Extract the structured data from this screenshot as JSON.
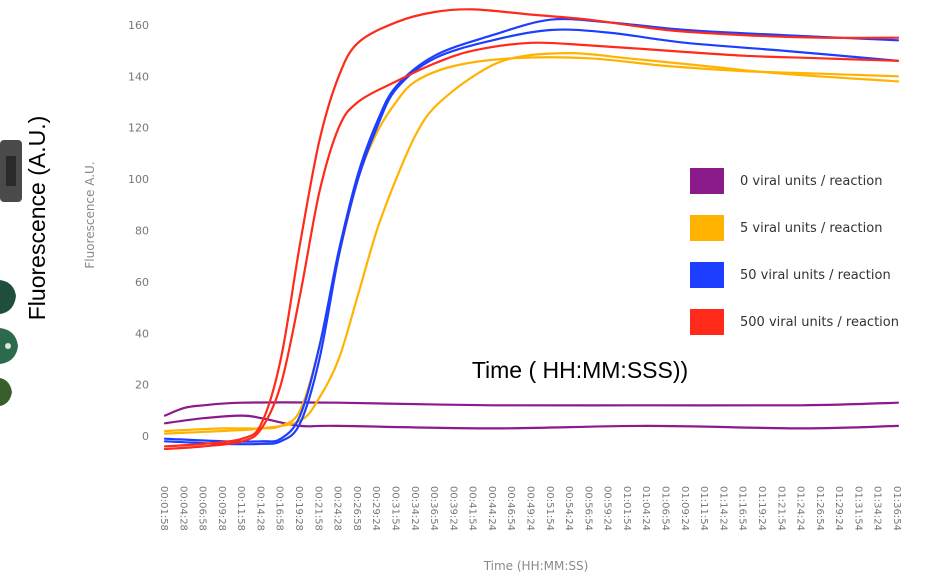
{
  "chart_data": {
    "type": "line",
    "title": "",
    "ylabel": "Fluorescence A.U.",
    "ylabel_overlay": "Fluorescence (A.U.)",
    "xlabel": "Time (HH:MM:SS)",
    "xlabel_overlay": "Time ( HH:MM:SSS))",
    "ylim": [
      -5,
      165
    ],
    "y_ticks": [
      0,
      20,
      40,
      60,
      80,
      100,
      120,
      140,
      160
    ],
    "xlim": [
      "00:01:58",
      "01:36:54"
    ],
    "x_ticks": [
      "00:01:58",
      "00:04:28",
      "00:06:58",
      "00:09:28",
      "00:11:58",
      "00:14:28",
      "00:16:58",
      "00:19:28",
      "00:21:58",
      "00:24:28",
      "00:26:58",
      "00:29:24",
      "00:31:54",
      "00:34:24",
      "00:36:54",
      "00:39:24",
      "00:41:54",
      "00:44:24",
      "00:46:54",
      "00:49:24",
      "00:51:54",
      "00:54:24",
      "00:56:54",
      "00:59:24",
      "01:01:54",
      "01:04:24",
      "01:06:54",
      "01:09:24",
      "01:11:54",
      "01:14:24",
      "01:16:54",
      "01:19:24",
      "01:21:54",
      "01:24:24",
      "01:26:54",
      "01:29:24",
      "01:31:54",
      "01:34:24",
      "01:36:54"
    ],
    "grid": false,
    "legend_position": "right",
    "series": [
      {
        "name": "0 viral units / reaction",
        "color": "#8B1A8B",
        "group": 0,
        "points": [
          [
            "00:01:58",
            8
          ],
          [
            "00:04:28",
            11
          ],
          [
            "00:06:58",
            12
          ],
          [
            "00:11:58",
            13
          ],
          [
            "00:24:28",
            13
          ],
          [
            "00:44:24",
            12
          ],
          [
            "01:04:24",
            12
          ],
          [
            "01:24:24",
            12
          ],
          [
            "01:36:54",
            13
          ]
        ]
      },
      {
        "name": "0 viral units / reaction",
        "color": "#8B1A8B",
        "group": 0,
        "points": [
          [
            "00:01:58",
            5
          ],
          [
            "00:06:58",
            7
          ],
          [
            "00:11:58",
            8
          ],
          [
            "00:14:28",
            7
          ],
          [
            "00:19:28",
            4
          ],
          [
            "00:24:28",
            4
          ],
          [
            "00:44:24",
            3
          ],
          [
            "01:04:24",
            4
          ],
          [
            "01:24:24",
            3
          ],
          [
            "01:36:54",
            4
          ]
        ]
      },
      {
        "name": "5 viral units / reaction",
        "color": "#FFB300",
        "group": 1,
        "points": [
          [
            "00:01:58",
            2
          ],
          [
            "00:09:28",
            3
          ],
          [
            "00:14:28",
            3
          ],
          [
            "00:16:58",
            4
          ],
          [
            "00:19:28",
            10
          ],
          [
            "00:21:58",
            35
          ],
          [
            "00:24:28",
            70
          ],
          [
            "00:26:58",
            100
          ],
          [
            "00:29:24",
            118
          ],
          [
            "00:31:54",
            130
          ],
          [
            "00:34:24",
            138
          ],
          [
            "00:39:24",
            144
          ],
          [
            "00:46:54",
            147
          ],
          [
            "00:56:54",
            147
          ],
          [
            "01:06:54",
            144
          ],
          [
            "01:16:54",
            142
          ],
          [
            "01:26:54",
            141
          ],
          [
            "01:36:54",
            140
          ]
        ]
      },
      {
        "name": "5 viral units / reaction",
        "color": "#FFB300",
        "group": 1,
        "points": [
          [
            "00:01:58",
            1
          ],
          [
            "00:09:28",
            2
          ],
          [
            "00:14:28",
            3
          ],
          [
            "00:19:28",
            6
          ],
          [
            "00:21:58",
            15
          ],
          [
            "00:24:28",
            30
          ],
          [
            "00:26:58",
            55
          ],
          [
            "00:29:24",
            80
          ],
          [
            "00:31:54",
            100
          ],
          [
            "00:34:24",
            117
          ],
          [
            "00:36:54",
            128
          ],
          [
            "00:41:54",
            140
          ],
          [
            "00:46:54",
            147
          ],
          [
            "00:54:24",
            149
          ],
          [
            "01:01:54",
            147
          ],
          [
            "01:11:54",
            144
          ],
          [
            "01:21:54",
            141
          ],
          [
            "01:36:54",
            138
          ]
        ]
      },
      {
        "name": "50 viral units / reaction",
        "color": "#1E3EFF",
        "group": 2,
        "points": [
          [
            "00:01:58",
            -2
          ],
          [
            "00:09:28",
            -3
          ],
          [
            "00:14:28",
            -3
          ],
          [
            "00:16:58",
            -2
          ],
          [
            "00:19:28",
            5
          ],
          [
            "00:21:58",
            30
          ],
          [
            "00:24:28",
            70
          ],
          [
            "00:26:58",
            100
          ],
          [
            "00:29:24",
            120
          ],
          [
            "00:31:54",
            135
          ],
          [
            "00:36:54",
            147
          ],
          [
            "00:44:24",
            154
          ],
          [
            "00:51:54",
            158
          ],
          [
            "00:59:24",
            157
          ],
          [
            "01:09:24",
            153
          ],
          [
            "01:21:54",
            150
          ],
          [
            "01:36:54",
            146
          ]
        ]
      },
      {
        "name": "50 viral units / reaction",
        "color": "#1E3EFF",
        "group": 2,
        "points": [
          [
            "00:01:58",
            -1
          ],
          [
            "00:09:28",
            -2
          ],
          [
            "00:14:28",
            -2
          ],
          [
            "00:16:58",
            -1
          ],
          [
            "00:19:28",
            8
          ],
          [
            "00:21:58",
            35
          ],
          [
            "00:24:28",
            72
          ],
          [
            "00:26:58",
            102
          ],
          [
            "00:29:24",
            122
          ],
          [
            "00:31:54",
            136
          ],
          [
            "00:36:54",
            148
          ],
          [
            "00:44:24",
            156
          ],
          [
            "00:51:54",
            162
          ],
          [
            "00:59:24",
            161
          ],
          [
            "01:09:24",
            158
          ],
          [
            "01:21:54",
            156
          ],
          [
            "01:36:54",
            154
          ]
        ]
      },
      {
        "name": "500 viral units / reaction",
        "color": "#FF2A1A",
        "group": 3,
        "points": [
          [
            "00:01:58",
            -4
          ],
          [
            "00:06:58",
            -3
          ],
          [
            "00:11:58",
            -1
          ],
          [
            "00:14:28",
            5
          ],
          [
            "00:16:58",
            30
          ],
          [
            "00:19:28",
            75
          ],
          [
            "00:21:58",
            115
          ],
          [
            "00:24:28",
            140
          ],
          [
            "00:26:58",
            153
          ],
          [
            "00:31:54",
            161
          ],
          [
            "00:36:54",
            165
          ],
          [
            "00:41:54",
            166
          ],
          [
            "00:49:24",
            164
          ],
          [
            "00:56:54",
            162
          ],
          [
            "01:06:54",
            158
          ],
          [
            "01:16:54",
            156
          ],
          [
            "01:26:54",
            155
          ],
          [
            "01:36:54",
            155
          ]
        ]
      },
      {
        "name": "500 viral units / reaction",
        "color": "#FF2A1A",
        "group": 3,
        "points": [
          [
            "00:01:58",
            -5
          ],
          [
            "00:06:58",
            -4
          ],
          [
            "00:11:58",
            -2
          ],
          [
            "00:14:28",
            3
          ],
          [
            "00:16:58",
            20
          ],
          [
            "00:19:28",
            55
          ],
          [
            "00:21:58",
            95
          ],
          [
            "00:24:28",
            120
          ],
          [
            "00:26:58",
            130
          ],
          [
            "00:31:54",
            138
          ],
          [
            "00:36:54",
            145
          ],
          [
            "00:41:54",
            150
          ],
          [
            "00:49:24",
            153
          ],
          [
            "00:56:54",
            152
          ],
          [
            "01:06:54",
            150
          ],
          [
            "01:16:54",
            148
          ],
          [
            "01:26:54",
            147
          ],
          [
            "01:36:54",
            146
          ]
        ]
      }
    ],
    "legend": [
      {
        "label": "0 viral units / reaction",
        "color": "#8B1A8B"
      },
      {
        "label": "5 viral units / reaction",
        "color": "#FFB300"
      },
      {
        "label": "50 viral units / reaction",
        "color": "#1E3EFF"
      },
      {
        "label": "500 viral units / reaction",
        "color": "#FF2A1A"
      }
    ]
  }
}
